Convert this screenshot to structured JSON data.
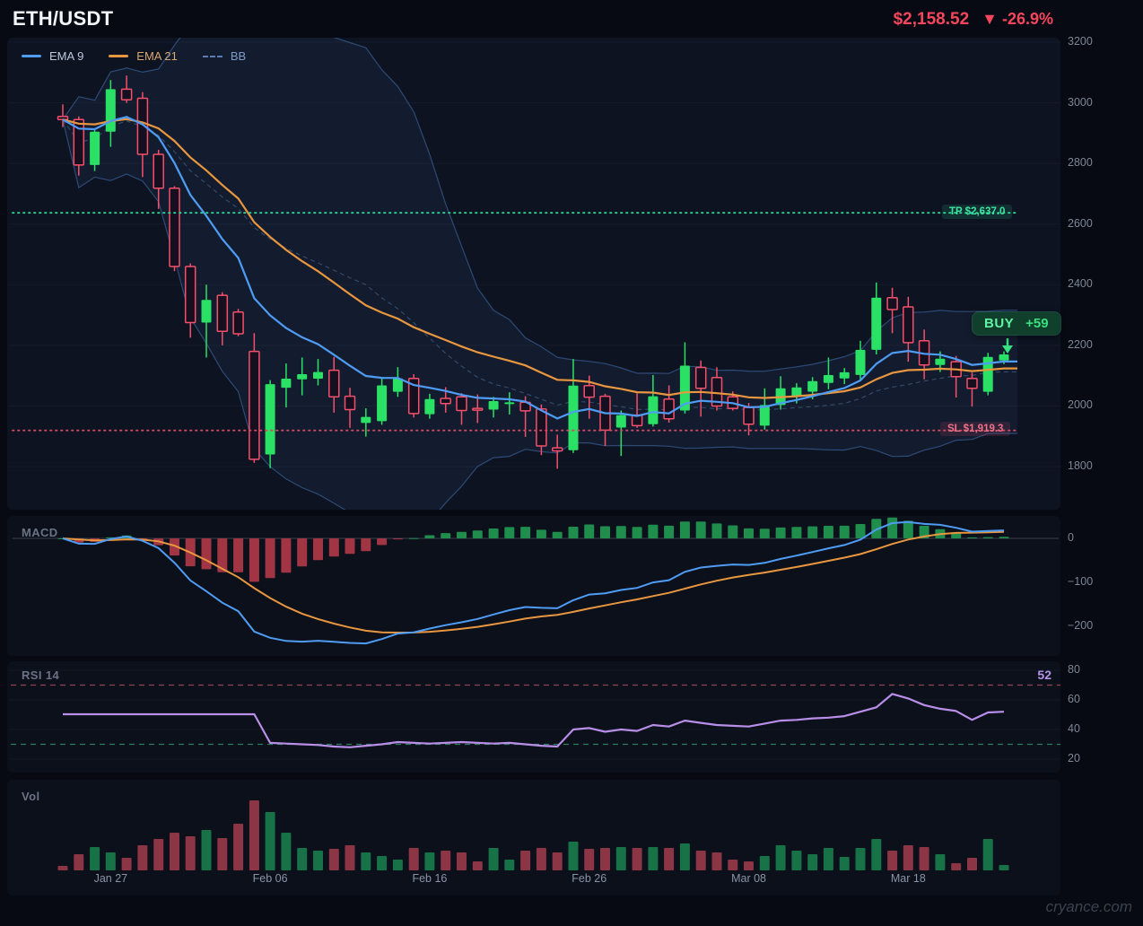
{
  "header": {
    "symbol": "ETH/USDT",
    "price": "$2,158.52",
    "change": "▼ -26.9%"
  },
  "legend": {
    "items": [
      {
        "label": "EMA 9",
        "color": "#4f9cf5",
        "text_color": "#bcc8dc",
        "style": "solid"
      },
      {
        "label": "EMA 21",
        "color": "#e8963f",
        "text_color": "#d7a86f",
        "style": "solid"
      },
      {
        "label": "BB",
        "color": "#5c7bb0",
        "text_color": "#7f9cc9",
        "style": "dashed"
      }
    ]
  },
  "panels": {
    "macd": {
      "title": "MACD"
    },
    "rsi": {
      "title": "RSI 14",
      "value": "52"
    },
    "vol": {
      "title": "Vol"
    }
  },
  "annotations": {
    "tp": {
      "text": "TP $2,637.0",
      "price": 2637.0,
      "color": "#2fd597"
    },
    "sl": {
      "text": "SL $1,919.3",
      "price": 1919.3,
      "color": "#cf4a63"
    },
    "buy": {
      "text": "BUY",
      "delta": "+59",
      "color": "#38e07e"
    }
  },
  "watermark": "cryance.com",
  "axes": {
    "price_ticks": [
      {
        "label": "3200",
        "value": 3200
      },
      {
        "label": "3000",
        "value": 3000
      },
      {
        "label": "2800",
        "value": 2800
      },
      {
        "label": "2600",
        "value": 2600
      },
      {
        "label": "2400",
        "value": 2400
      },
      {
        "label": "2200",
        "value": 2200
      },
      {
        "label": "2000",
        "value": 2000
      },
      {
        "label": "1800",
        "value": 1800
      }
    ],
    "macd_ticks": [
      {
        "label": "0",
        "value": 0
      },
      {
        "label": "−100",
        "value": -100
      },
      {
        "label": "−200",
        "value": -200
      }
    ],
    "rsi_ticks": [
      {
        "label": "80",
        "value": 80
      },
      {
        "label": "60",
        "value": 60
      },
      {
        "label": "40",
        "value": 40
      },
      {
        "label": "20",
        "value": 20
      }
    ],
    "x_labels": [
      {
        "label": "Jan 27",
        "index": 3
      },
      {
        "label": "Feb 06",
        "index": 13
      },
      {
        "label": "Feb 16",
        "index": 23
      },
      {
        "label": "Feb 26",
        "index": 33
      },
      {
        "label": "Mar 08",
        "index": 43
      },
      {
        "label": "Mar 18",
        "index": 53
      }
    ]
  },
  "chart_data": {
    "type": "candlestick",
    "title": "ETH/USDT daily with EMA 9, EMA 21, Bollinger Bands, MACD, RSI 14, Volume",
    "price_range": [
      1800,
      3200
    ],
    "indicators": {
      "ema_fast": 9,
      "ema_slow": 21,
      "bb_period": 20,
      "bb_mult": 2,
      "macd_params": [
        12,
        26,
        9
      ],
      "rsi_period": 14,
      "rsi_overbought": 70,
      "rsi_oversold": 30
    },
    "colors": {
      "up": "#2ae166",
      "down": "#f4506b",
      "ema9": "#4f9cf5",
      "ema21": "#e8963f",
      "bb_line": "#31507e",
      "bb_fill": "rgba(96,140,210,0.08)",
      "macd_line": "#4f9cf5",
      "signal_line": "#e8963f",
      "hist_pos": "#1f8e4d",
      "hist_neg": "#a23544",
      "rsi_line": "#b98ee8",
      "vol_up": "#177247",
      "vol_down": "#8c3545"
    },
    "candles": [
      [
        2955,
        2995,
        2920,
        2945
      ],
      [
        2945,
        2955,
        2760,
        2795
      ],
      [
        2795,
        2915,
        2775,
        2905
      ],
      [
        2905,
        3075,
        2855,
        3045
      ],
      [
        3045,
        3090,
        3000,
        3010
      ],
      [
        3015,
        3035,
        2755,
        2830
      ],
      [
        2830,
        2845,
        2650,
        2718
      ],
      [
        2718,
        2725,
        2445,
        2460
      ],
      [
        2460,
        2470,
        2225,
        2275
      ],
      [
        2275,
        2400,
        2160,
        2350
      ],
      [
        2365,
        2375,
        2200,
        2246
      ],
      [
        2310,
        2320,
        2230,
        2238
      ],
      [
        2180,
        2240,
        1812,
        1824
      ],
      [
        1840,
        2085,
        1795,
        2072
      ],
      [
        2060,
        2140,
        1995,
        2090
      ],
      [
        2088,
        2160,
        2035,
        2105
      ],
      [
        2090,
        2155,
        2068,
        2112
      ],
      [
        2118,
        2162,
        1978,
        2030
      ],
      [
        2032,
        2060,
        1928,
        1988
      ],
      [
        1944,
        1992,
        1899,
        1964
      ],
      [
        1950,
        2090,
        1938,
        2068
      ],
      [
        2047,
        2128,
        2030,
        2091
      ],
      [
        2091,
        2105,
        1962,
        1975
      ],
      [
        1973,
        2040,
        1958,
        2023
      ],
      [
        2025,
        2062,
        1978,
        2008
      ],
      [
        2030,
        2042,
        1938,
        1985
      ],
      [
        1992,
        2038,
        1944,
        1988
      ],
      [
        1988,
        2030,
        1962,
        2016
      ],
      [
        2010,
        2045,
        1972,
        2012
      ],
      [
        2012,
        2032,
        1898,
        1984
      ],
      [
        1990,
        2005,
        1838,
        1868
      ],
      [
        1862,
        1905,
        1793,
        1852
      ],
      [
        1854,
        2155,
        1845,
        2067
      ],
      [
        2067,
        2100,
        1958,
        2029
      ],
      [
        2032,
        2040,
        1868,
        1920
      ],
      [
        1929,
        1985,
        1835,
        1970
      ],
      [
        1970,
        2042,
        1928,
        1935
      ],
      [
        1940,
        2102,
        1932,
        2032
      ],
      [
        2023,
        2068,
        1945,
        1958
      ],
      [
        1985,
        2210,
        1975,
        2133
      ],
      [
        2127,
        2150,
        1965,
        2058
      ],
      [
        2094,
        2128,
        1985,
        2000
      ],
      [
        2030,
        2048,
        1985,
        1992
      ],
      [
        1995,
        2010,
        1903,
        1940
      ],
      [
        1935,
        2058,
        1922,
        2003
      ],
      [
        2003,
        2098,
        1988,
        2058
      ],
      [
        2032,
        2075,
        2008,
        2061
      ],
      [
        2047,
        2095,
        2022,
        2082
      ],
      [
        2076,
        2160,
        2055,
        2102
      ],
      [
        2091,
        2125,
        2072,
        2111
      ],
      [
        2102,
        2215,
        2085,
        2185
      ],
      [
        2185,
        2407,
        2170,
        2357
      ],
      [
        2357,
        2390,
        2240,
        2318
      ],
      [
        2327,
        2360,
        2146,
        2209
      ],
      [
        2215,
        2252,
        2088,
        2135
      ],
      [
        2135,
        2180,
        2112,
        2156
      ],
      [
        2146,
        2165,
        2028,
        2097
      ],
      [
        2091,
        2110,
        1998,
        2058
      ],
      [
        2047,
        2175,
        2035,
        2162
      ],
      [
        2150,
        2180,
        2138,
        2170
      ]
    ],
    "volume": [
      5,
      18,
      26,
      20,
      14,
      28,
      35,
      42,
      38,
      45,
      36,
      52,
      78,
      65,
      42,
      25,
      22,
      24,
      28,
      20,
      16,
      12,
      25,
      20,
      22,
      20,
      10,
      25,
      12,
      22,
      25,
      20,
      32,
      24,
      25,
      26,
      25,
      26,
      25,
      30,
      22,
      20,
      12,
      10,
      16,
      28,
      22,
      18,
      25,
      15,
      25,
      35,
      22,
      28,
      26,
      18,
      8,
      14,
      35,
      6
    ],
    "rsi": [
      50.3,
      50.3,
      50.3,
      50.3,
      50.3,
      50.3,
      50.3,
      50.3,
      50.3,
      50.3,
      50.3,
      50.3,
      50.3,
      31,
      30.5,
      30,
      29.5,
      28.5,
      28,
      29,
      30,
      31.5,
      31,
      30.5,
      31,
      31.5,
      31,
      30.5,
      31,
      30,
      29,
      28.5,
      40,
      41,
      38.5,
      40,
      39,
      43,
      42,
      46,
      44.5,
      43,
      42.5,
      42,
      44,
      46,
      46.5,
      47.5,
      48,
      49,
      52,
      55,
      64,
      61,
      56.5,
      54,
      52.5,
      46.5,
      51.5,
      52
    ]
  }
}
